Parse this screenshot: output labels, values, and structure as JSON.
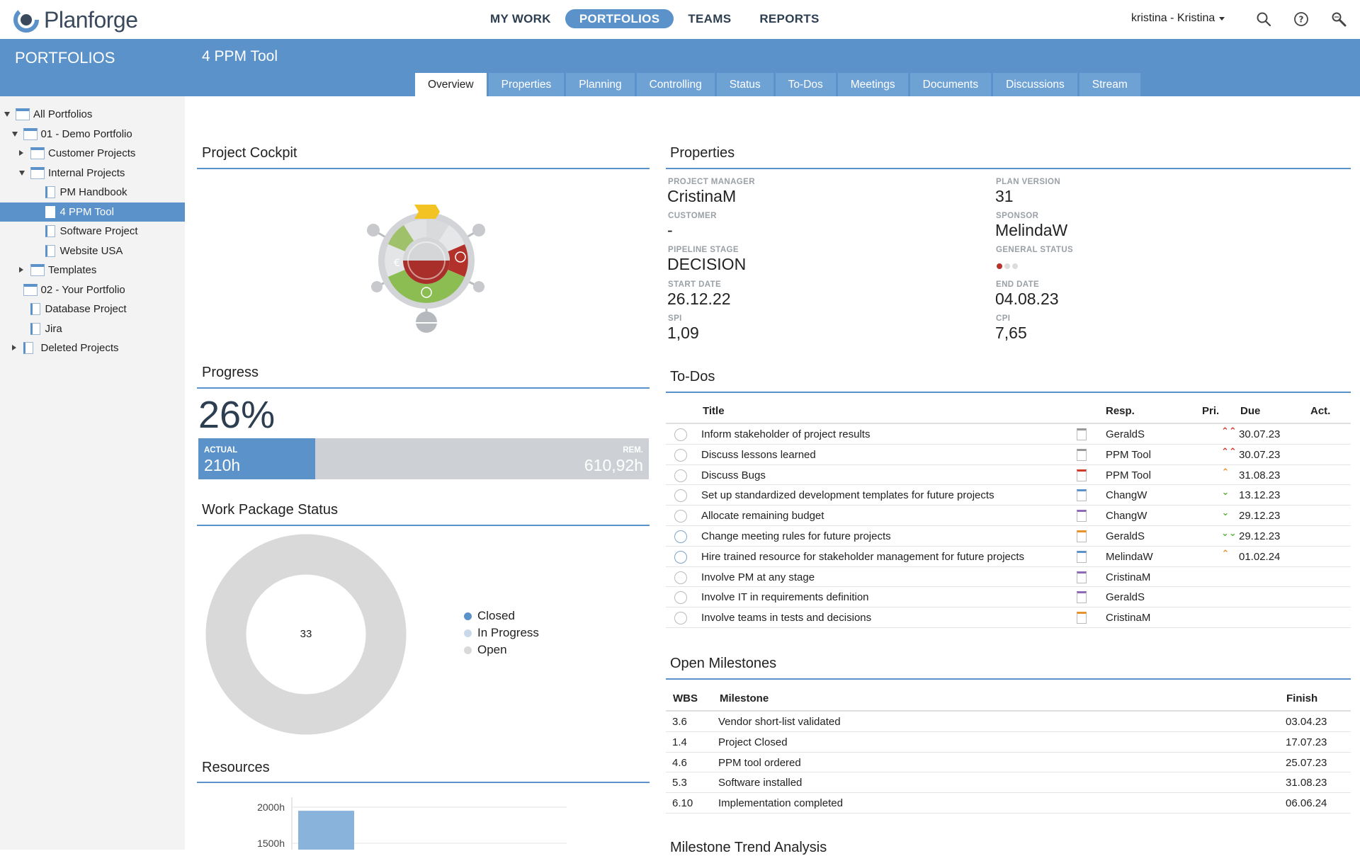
{
  "app": {
    "brand": "Planforge"
  },
  "nav": {
    "items": [
      "MY WORK",
      "PORTFOLIOS",
      "TEAMS",
      "REPORTS"
    ],
    "active": "PORTFOLIOS"
  },
  "user": {
    "label": "kristina - Kristina"
  },
  "sidebar": {
    "title": "PORTFOLIOS",
    "tree": [
      {
        "label": "All Portfolios",
        "level": 0,
        "toggle": "open",
        "icon": "folder-icon"
      },
      {
        "label": "01 - Demo Portfolio",
        "level": 1,
        "toggle": "open",
        "icon": "folder-icon"
      },
      {
        "label": "Customer Projects",
        "level": 2,
        "toggle": "closed",
        "icon": "folder-icon"
      },
      {
        "label": "Internal Projects",
        "level": 2,
        "toggle": "open",
        "icon": "folder-icon"
      },
      {
        "label": "PM Handbook",
        "level": 3,
        "toggle": "",
        "icon": "project-icon"
      },
      {
        "label": "4 PPM Tool",
        "level": 3,
        "toggle": "",
        "icon": "project-icon",
        "selected": true
      },
      {
        "label": "Software Project",
        "level": 3,
        "toggle": "",
        "icon": "project-icon"
      },
      {
        "label": "Website USA",
        "level": 3,
        "toggle": "",
        "icon": "project-icon"
      },
      {
        "label": "Templates",
        "level": 2,
        "toggle": "closed",
        "icon": "folder-icon"
      },
      {
        "label": "02 - Your Portfolio",
        "level": 1,
        "toggle": "",
        "icon": "folder-icon"
      },
      {
        "label": "Database Project",
        "level": 1,
        "toggle": "",
        "icon": "project-icon"
      },
      {
        "label": "Jira",
        "level": 1,
        "toggle": "",
        "icon": "project-icon"
      },
      {
        "label": "Deleted Projects",
        "level": 1,
        "toggle": "closed",
        "icon": "trash-icon"
      }
    ]
  },
  "project": {
    "title": "4 PPM Tool",
    "tabs": [
      "Overview",
      "Properties",
      "Planning",
      "Controlling",
      "Status",
      "To-Dos",
      "Meetings",
      "Documents",
      "Discussions",
      "Stream"
    ],
    "active_tab": "Overview"
  },
  "cockpit": {
    "title": "Project Cockpit"
  },
  "properties": {
    "title": "Properties",
    "project_manager": {
      "label": "PROJECT MANAGER",
      "value": "CristinaM"
    },
    "plan_version": {
      "label": "PLAN VERSION",
      "value": "31"
    },
    "customer": {
      "label": "CUSTOMER",
      "value": "-"
    },
    "sponsor": {
      "label": "SPONSOR",
      "value": "MelindaW"
    },
    "pipeline_stage": {
      "label": "PIPELINE STAGE",
      "value": "DECISION"
    },
    "general_status": {
      "label": "GENERAL STATUS",
      "colors": [
        "#b8322a",
        "#dcdcdc",
        "#dcdcdc"
      ]
    },
    "start_date": {
      "label": "START DATE",
      "value": "26.12.22"
    },
    "end_date": {
      "label": "END DATE",
      "value": "04.08.23"
    },
    "spi": {
      "label": "SPI",
      "value": "1,09"
    },
    "cpi": {
      "label": "CPI",
      "value": "7,65"
    }
  },
  "progress": {
    "title": "Progress",
    "percent_label": "26%",
    "percent": 26,
    "actual_label": "ACTUAL",
    "actual_value": "210h",
    "rem_label": "REM.",
    "rem_value": "610,92h"
  },
  "todos": {
    "title": "To-Dos",
    "headers": {
      "title": "Title",
      "resp": "Resp.",
      "pri": "Pri.",
      "due": "Due",
      "act": "Act."
    },
    "rows": [
      {
        "title": "Inform stakeholder of project results",
        "resp": "GeraldS",
        "pri": "high",
        "due": "30.07.23",
        "state": "open"
      },
      {
        "title": "Discuss lessons learned",
        "resp": "PPM Tool",
        "pri": "high",
        "due": "30.07.23",
        "state": "open"
      },
      {
        "title": "Discuss Bugs",
        "resp": "PPM Tool",
        "pri": "medium-high",
        "due": "31.08.23",
        "state": "open"
      },
      {
        "title": "Set up standardized development templates for future projects",
        "resp": "ChangW",
        "pri": "low",
        "due": "13.12.23",
        "state": "open"
      },
      {
        "title": "Allocate remaining budget",
        "resp": "ChangW",
        "pri": "low",
        "due": "29.12.23",
        "state": "open"
      },
      {
        "title": "Change meeting rules for future projects",
        "resp": "GeraldS",
        "pri": "lowest",
        "due": "29.12.23",
        "state": "in-progress"
      },
      {
        "title": "Hire trained resource for stakeholder management for future projects",
        "resp": "MelindaW",
        "pri": "medium-high",
        "due": "01.02.24",
        "state": "in-progress"
      },
      {
        "title": "Involve PM at any stage",
        "resp": "CristinaM",
        "pri": "",
        "due": "",
        "state": "open"
      },
      {
        "title": "Involve IT in requirements definition",
        "resp": "GeraldS",
        "pri": "",
        "due": "",
        "state": "open"
      },
      {
        "title": "Involve teams in tests and decisions",
        "resp": "CristinaM",
        "pri": "",
        "due": "",
        "state": "open"
      }
    ]
  },
  "wp_status": {
    "title": "Work Package Status",
    "center_label": "33",
    "legend": [
      {
        "label": "Closed",
        "color": "#5a92c9"
      },
      {
        "label": "In Progress",
        "color": "#c9d9ea"
      },
      {
        "label": "Open",
        "color": "#d9d9d9"
      }
    ]
  },
  "milestones": {
    "title": "Open Milestones",
    "headers": {
      "wbs": "WBS",
      "milestone": "Milestone",
      "finish": "Finish"
    },
    "rows": [
      {
        "wbs": "3.6",
        "milestone": "Vendor short-list validated",
        "finish": "03.04.23"
      },
      {
        "wbs": "1.4",
        "milestone": "Project Closed",
        "finish": "17.07.23"
      },
      {
        "wbs": "4.6",
        "milestone": "PPM tool ordered",
        "finish": "25.07.23"
      },
      {
        "wbs": "5.3",
        "milestone": "Software installed",
        "finish": "31.08.23"
      },
      {
        "wbs": "6.10",
        "milestone": "Implementation completed",
        "finish": "06.06.24"
      }
    ]
  },
  "resources": {
    "title": "Resources",
    "chart_data": {
      "type": "bar",
      "y_ticks": [
        "2000h",
        "1500h"
      ],
      "series": [
        {
          "values": [
            1950
          ]
        }
      ]
    }
  },
  "next_section": {
    "title": "Milestone Trend Analysis"
  },
  "colors": {
    "accent": "#5a92c9",
    "tab_inactive": "#6fa2d4",
    "bar_remaining": "#cdd1d5",
    "priority_high": "#d0392b",
    "priority_med": "#e8922a",
    "priority_low": "#5bb33c"
  }
}
